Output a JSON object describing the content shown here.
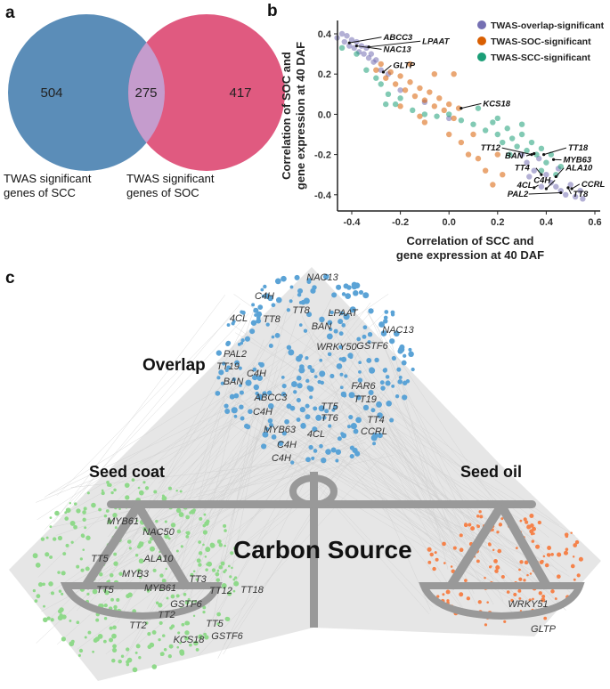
{
  "panels": {
    "a": "a",
    "b": "b",
    "c": "c"
  },
  "venn": {
    "left": {
      "count": "504",
      "label_line1": "TWAS significant",
      "label_line2": "genes of SCC",
      "color": "#5b8db8"
    },
    "overlap": {
      "count": "275",
      "color": "#c59ccd"
    },
    "right": {
      "count": "417",
      "label_line1": "TWAS significant",
      "label_line2": "genes of SOC",
      "color": "#e05a80"
    }
  },
  "chart_data": {
    "type": "scatter",
    "xlabel_line1": "Correlation of SCC and",
    "xlabel_line2": "gene expression at 40 DAF",
    "ylabel_line1": "Correlation of SOC and",
    "ylabel_line2": "gene expression at 40 DAF",
    "xlim": [
      -0.52,
      0.62
    ],
    "ylim": [
      -0.47,
      0.45
    ],
    "xticks": [
      "-0.4",
      "-0.2",
      "0.0",
      "0.2",
      "0.4",
      "0.6"
    ],
    "yticks": [
      "0.4",
      "0.2",
      "0.0",
      "-0.2",
      "-0.4"
    ],
    "legend_position": "top-right",
    "series": [
      {
        "name": "TWAS-overlap-significant",
        "color": "#7570b3",
        "points": [
          [
            -0.46,
            0.38
          ],
          [
            -0.44,
            0.4
          ],
          [
            -0.43,
            0.36
          ],
          [
            -0.42,
            0.39
          ],
          [
            -0.41,
            0.34
          ],
          [
            -0.4,
            0.37
          ],
          [
            -0.39,
            0.33
          ],
          [
            -0.38,
            0.36
          ],
          [
            -0.37,
            0.31
          ],
          [
            -0.36,
            0.34
          ],
          [
            -0.35,
            0.3
          ],
          [
            -0.34,
            0.33
          ],
          [
            -0.33,
            0.28
          ],
          [
            -0.32,
            0.3
          ],
          [
            -0.31,
            0.26
          ],
          [
            -0.3,
            0.27
          ],
          [
            -0.28,
            0.22
          ],
          [
            -0.25,
            0.2
          ],
          [
            -0.2,
            0.12
          ],
          [
            -0.1,
            0.06
          ],
          [
            0.0,
            -0.02
          ],
          [
            0.3,
            -0.2
          ],
          [
            0.32,
            -0.24
          ],
          [
            0.35,
            -0.28
          ],
          [
            0.37,
            -0.22
          ],
          [
            0.4,
            -0.3
          ],
          [
            0.42,
            -0.34
          ],
          [
            0.44,
            -0.36
          ],
          [
            0.46,
            -0.38
          ],
          [
            0.48,
            -0.4
          ],
          [
            0.5,
            -0.35
          ],
          [
            0.52,
            -0.41
          ],
          [
            0.54,
            -0.38
          ],
          [
            0.55,
            -0.42
          ],
          [
            0.38,
            -0.36
          ],
          [
            0.33,
            -0.31
          ],
          [
            0.45,
            -0.27
          ]
        ]
      },
      {
        "name": "TWAS-SOC-significant",
        "color": "#d95f02",
        "points": [
          [
            -0.3,
            0.22
          ],
          [
            -0.28,
            0.25
          ],
          [
            -0.26,
            0.18
          ],
          [
            -0.24,
            0.21
          ],
          [
            -0.22,
            0.15
          ],
          [
            -0.2,
            0.19
          ],
          [
            -0.18,
            0.12
          ],
          [
            -0.16,
            0.16
          ],
          [
            -0.14,
            0.09
          ],
          [
            -0.12,
            0.13
          ],
          [
            -0.1,
            0.07
          ],
          [
            -0.08,
            0.11
          ],
          [
            -0.06,
            0.04
          ],
          [
            -0.04,
            0.08
          ],
          [
            -0.02,
            0.02
          ],
          [
            0.0,
            0.05
          ],
          [
            0.02,
            -0.02
          ],
          [
            0.04,
            0.03
          ],
          [
            -0.2,
            0.04
          ],
          [
            -0.1,
            -0.04
          ],
          [
            0.0,
            -0.1
          ],
          [
            0.05,
            -0.14
          ],
          [
            0.08,
            -0.2
          ],
          [
            0.12,
            -0.22
          ],
          [
            0.15,
            -0.28
          ],
          [
            0.18,
            -0.35
          ],
          [
            0.2,
            -0.2
          ],
          [
            -0.06,
            0.2
          ],
          [
            0.02,
            0.2
          ],
          [
            -0.16,
            0.25
          ],
          [
            0.1,
            -0.1
          ],
          [
            0.22,
            -0.3
          ],
          [
            -0.12,
            -0.01
          ]
        ]
      },
      {
        "name": "TWAS-SCC-significant",
        "color": "#1b9e77",
        "points": [
          [
            -0.44,
            0.33
          ],
          [
            -0.38,
            0.3
          ],
          [
            -0.34,
            0.22
          ],
          [
            -0.3,
            0.18
          ],
          [
            -0.28,
            0.15
          ],
          [
            -0.25,
            0.1
          ],
          [
            -0.22,
            0.05
          ],
          [
            -0.2,
            0.08
          ],
          [
            -0.15,
            0.02
          ],
          [
            -0.1,
            0.0
          ],
          [
            -0.05,
            -0.01
          ],
          [
            0.0,
            0.0
          ],
          [
            0.05,
            -0.03
          ],
          [
            0.1,
            -0.05
          ],
          [
            0.12,
            0.03
          ],
          [
            0.15,
            -0.08
          ],
          [
            0.18,
            -0.04
          ],
          [
            0.2,
            -0.1
          ],
          [
            0.22,
            -0.14
          ],
          [
            0.24,
            -0.07
          ],
          [
            0.26,
            -0.12
          ],
          [
            0.28,
            -0.16
          ],
          [
            0.3,
            -0.1
          ],
          [
            0.32,
            -0.18
          ],
          [
            0.34,
            -0.14
          ],
          [
            0.36,
            -0.2
          ],
          [
            0.38,
            -0.17
          ],
          [
            0.4,
            -0.24
          ],
          [
            0.42,
            -0.2
          ],
          [
            0.44,
            -0.3
          ],
          [
            0.46,
            -0.26
          ],
          [
            0.3,
            -0.05
          ],
          [
            0.25,
            -0.2
          ],
          [
            0.38,
            -0.28
          ],
          [
            0.2,
            -0.02
          ],
          [
            -0.26,
            0.05
          ]
        ]
      }
    ],
    "annotations": [
      {
        "label": "ABCC3",
        "tx": -0.27,
        "ty": 0.37,
        "px": -0.41,
        "py": 0.355
      },
      {
        "label": "LPAAT",
        "tx": -0.11,
        "ty": 0.35,
        "px": -0.33,
        "py": 0.335
      },
      {
        "label": "NAC13",
        "tx": -0.27,
        "ty": 0.31,
        "px": -0.38,
        "py": 0.34
      },
      {
        "label": "GLTP",
        "tx": -0.23,
        "ty": 0.23,
        "px": -0.27,
        "py": 0.21
      },
      {
        "label": "KCS18",
        "tx": 0.14,
        "ty": 0.04,
        "px": 0.05,
        "py": 0.03
      },
      {
        "label": "TT12",
        "tx": 0.13,
        "ty": -0.18,
        "px": 0.34,
        "py": -0.2
      },
      {
        "label": "BAN",
        "tx": 0.23,
        "ty": -0.22,
        "px": 0.35,
        "py": -0.195
      },
      {
        "label": "TT18",
        "tx": 0.49,
        "ty": -0.18,
        "px": 0.39,
        "py": -0.2
      },
      {
        "label": "MYB63",
        "tx": 0.47,
        "ty": -0.24,
        "px": 0.43,
        "py": -0.225
      },
      {
        "label": "TT4",
        "tx": 0.27,
        "ty": -0.28,
        "px": 0.38,
        "py": -0.3
      },
      {
        "label": "ALA10",
        "tx": 0.48,
        "ty": -0.28,
        "px": 0.44,
        "py": -0.31
      },
      {
        "label": "C4H",
        "tx": 0.37,
        "ty": -0.35,
        "px": 0.4,
        "py": -0.37
      },
      {
        "label": "CCRL",
        "tx": 0.53,
        "ty": -0.36,
        "px": 0.505,
        "py": -0.37
      },
      {
        "label": "4CL",
        "tx": 0.28,
        "ty": -0.365,
        "px": 0.35,
        "py": -0.365
      },
      {
        "label": "PAL2",
        "tx": 0.24,
        "ty": -0.41,
        "px": 0.46,
        "py": -0.39
      },
      {
        "label": "TT8",
        "tx": 0.51,
        "ty": -0.41,
        "px": 0.49,
        "py": -0.365
      }
    ]
  },
  "network": {
    "overlap_title": "Overlap",
    "seed_coat_title": "Seed coat",
    "seed_oil_title": "Seed oil",
    "center_title": "Carbon Source",
    "colors": {
      "overlap": "#5ba3d6",
      "seed_coat": "#8fd98a",
      "seed_oil": "#f5824a",
      "scale": "#999999",
      "edges": "#d8d8d8"
    },
    "overlap_genes": [
      "NAC13",
      "C4H",
      "TT8",
      "LPAAT",
      "4CL",
      "TT8",
      "BAN",
      "NAC13",
      "GSTF6",
      "WRKY50",
      "PAL2",
      "TT19",
      "C4H",
      "BAN",
      "FAR6",
      "ABCC3",
      "C4H",
      "TT19",
      "TT5",
      "TT6",
      "TT4",
      "CCRL",
      "MYB63",
      "4CL",
      "C4H",
      "C4H"
    ],
    "seed_coat_genes": [
      "MYB61",
      "NAC50",
      "TT5",
      "ALA10",
      "MYB3",
      "TT5",
      "MYB61",
      "TT3",
      "TT12",
      "TT18",
      "GSTF6",
      "TT2",
      "TT5",
      "TT2",
      "KCS18",
      "GSTF6"
    ],
    "seed_oil_genes": [
      "WRKY51",
      "GLTP"
    ]
  }
}
